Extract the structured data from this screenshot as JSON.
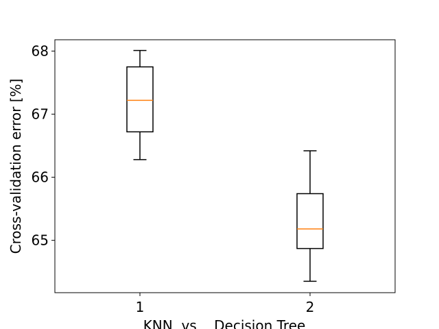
{
  "chart_data": {
    "type": "box",
    "title": "",
    "xlabel": "KNN  vs    Decision Tree",
    "ylabel": "Cross-validation error [%]",
    "xlim": [
      0.5,
      2.5
    ],
    "ylim": [
      64.17,
      68.18
    ],
    "yticks": [
      65,
      66,
      67,
      68
    ],
    "grid": false,
    "categories": [
      "1",
      "2"
    ],
    "boxes": [
      {
        "position": 1,
        "whisker_low": 66.28,
        "q1": 66.72,
        "median": 67.22,
        "q3": 67.75,
        "whisker_high": 68.01
      },
      {
        "position": 2,
        "whisker_low": 64.35,
        "q1": 64.87,
        "median": 65.18,
        "q3": 65.74,
        "whisker_high": 66.42
      }
    ],
    "colors": {
      "box": "#000000",
      "median": "#ff7f0e",
      "axes": "#000000"
    }
  }
}
